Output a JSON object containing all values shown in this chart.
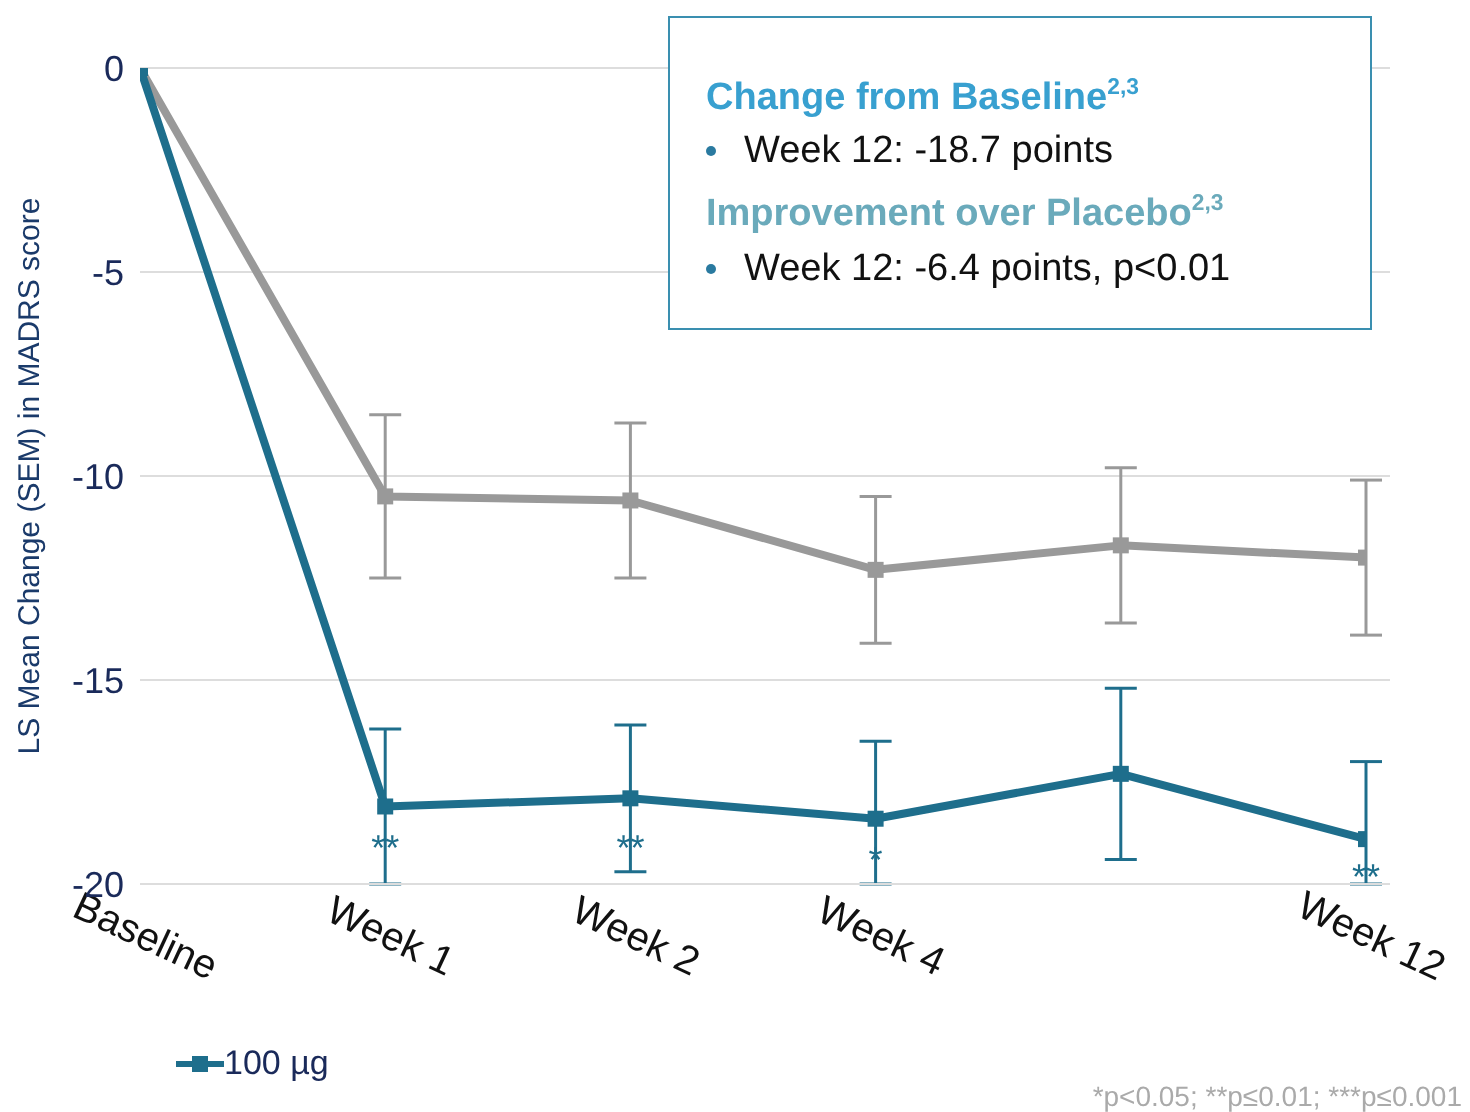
{
  "chart_data": {
    "type": "line",
    "ylabel": "LS Mean Change (SEM) in MADRS score",
    "categories": [
      "Baseline",
      "Week 1",
      "Week 2",
      "Week 4",
      null,
      "Week 12"
    ],
    "series": [
      {
        "color": "#999999",
        "values": [
          0,
          -10.5,
          -10.6,
          -12.3,
          -11.7,
          -12.0
        ],
        "errors": [
          null,
          2.0,
          1.9,
          1.8,
          1.9,
          1.9
        ]
      },
      {
        "name": "100 µg",
        "color": "#1e6e8c",
        "values": [
          0,
          -18.1,
          -17.9,
          -18.4,
          -17.3,
          -18.9
        ],
        "errors": [
          null,
          1.9,
          1.8,
          [
            -20,
            -16.5
          ],
          2.1,
          [
            -20,
            -17.0
          ]
        ]
      }
    ],
    "ylim": [
      -20,
      0
    ],
    "yticks": [
      -20,
      -15,
      -10,
      -5,
      0
    ],
    "grid": "y",
    "legend": "bottom left",
    "marker": "square",
    "line_style": "solid",
    "annotations": [
      "Change from Baseline$^{2,3}$",
      "Week 12: -18.7 points",
      "Improvement over Placebo$^{2,3}$",
      "Week 12: -6.4 points, p<0.01",
      {
        "text": "**",
        "x": "Week 1",
        "y": -19.1
      },
      {
        "text": "**",
        "x": "Week 2",
        "y": -19.1
      },
      {
        "text": "*",
        "x": "Week 4",
        "y": -19.4
      },
      {
        "text": "**",
        "x": "Week 12",
        "y": -19.8
      },
      "*p<0.05; **p≤0.01; ***p≤0.001"
    ]
  }
}
